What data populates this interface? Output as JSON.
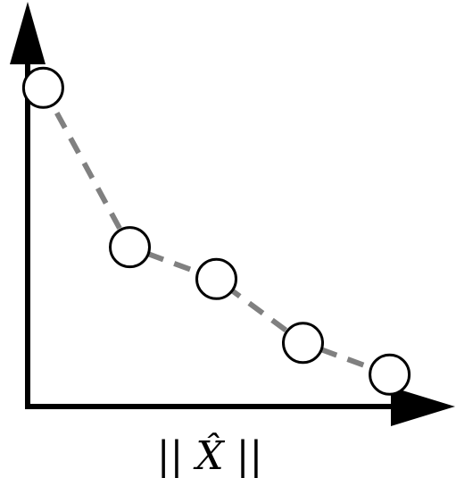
{
  "chart_data": {
    "type": "line",
    "title": "",
    "xlabel": "|| X̂ ||",
    "ylabel": "",
    "x": [
      1,
      2,
      3,
      4,
      5
    ],
    "series": [
      {
        "values": [
          10,
          5,
          4,
          2,
          1
        ],
        "line_style": "dashed",
        "marker": "open-circle"
      }
    ],
    "xlim": [
      0.8,
      5.2
    ],
    "ylim": [
      0,
      10.4
    ],
    "grid": false,
    "legend": "none",
    "colors": {
      "axes": "#000000",
      "series_line": "#808080",
      "marker_fill": "#ffffff",
      "marker_stroke": "#000000"
    }
  }
}
